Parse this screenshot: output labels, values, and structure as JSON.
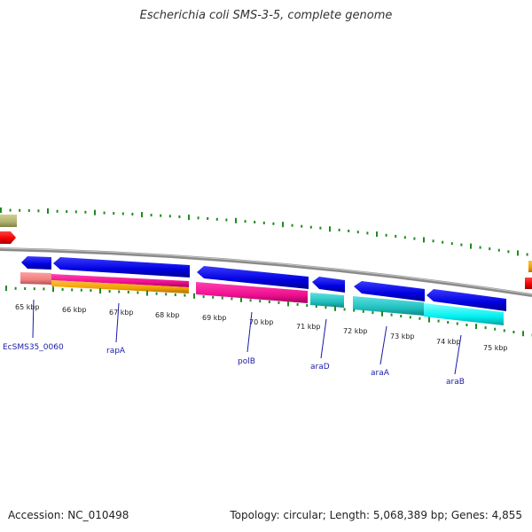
{
  "title": "Escherichia coli SMS-3-5, complete genome",
  "footer": {
    "accession": "Accession: NC_010498",
    "summary": "Topology: circular; Length: 5,068,389 bp; Genes: 4,855"
  },
  "colors": {
    "backbone": "#8a8a8a",
    "tick": "#1f8a1f",
    "gene_label": "#1a1aa8",
    "kbp_label": "#222222"
  },
  "kbp_labels": [
    "65 kbp",
    "66 kbp",
    "67 kbp",
    "68 kbp",
    "69 kbp",
    "70 kbp",
    "71 kbp",
    "72 kbp",
    "73 kbp",
    "74 kbp",
    "75 kbp"
  ],
  "gene_labels": [
    "EcSMS35_0060",
    "rapA",
    "polB",
    "araD",
    "araA",
    "araB"
  ],
  "feature_colors": {
    "forward_gene": "#f00000",
    "reverse_gene": "#0000f0",
    "cds_rapA": "#f01090",
    "cds_rapA_alt": "#f0a000",
    "cds_polB": "#f0209a",
    "cds_ara": "#20c8c8",
    "cds_araB": "#00f0f0",
    "cds_small": "#f08080",
    "olive": "#b0b070",
    "orange": "#f0a000"
  }
}
